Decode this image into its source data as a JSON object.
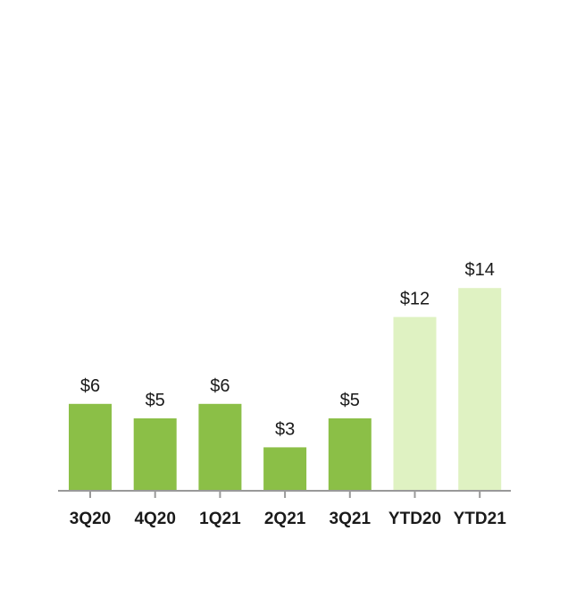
{
  "chart_data": {
    "type": "bar",
    "title": "",
    "xlabel": "",
    "ylabel": "",
    "categories": [
      "3Q20",
      "4Q20",
      "1Q21",
      "2Q21",
      "3Q21",
      "YTD20",
      "YTD21"
    ],
    "values": [
      6,
      5,
      6,
      3,
      5,
      12,
      14
    ],
    "value_labels": [
      "$6",
      "$5",
      "$6",
      "$3",
      "$5",
      "$12",
      "$14"
    ],
    "bar_colors": [
      "#8bbf47",
      "#8bbf47",
      "#8bbf47",
      "#8bbf47",
      "#8bbf47",
      "#dff2c2",
      "#dff2c2"
    ],
    "axis_color": "#999999",
    "grid": false,
    "legend": "none"
  }
}
